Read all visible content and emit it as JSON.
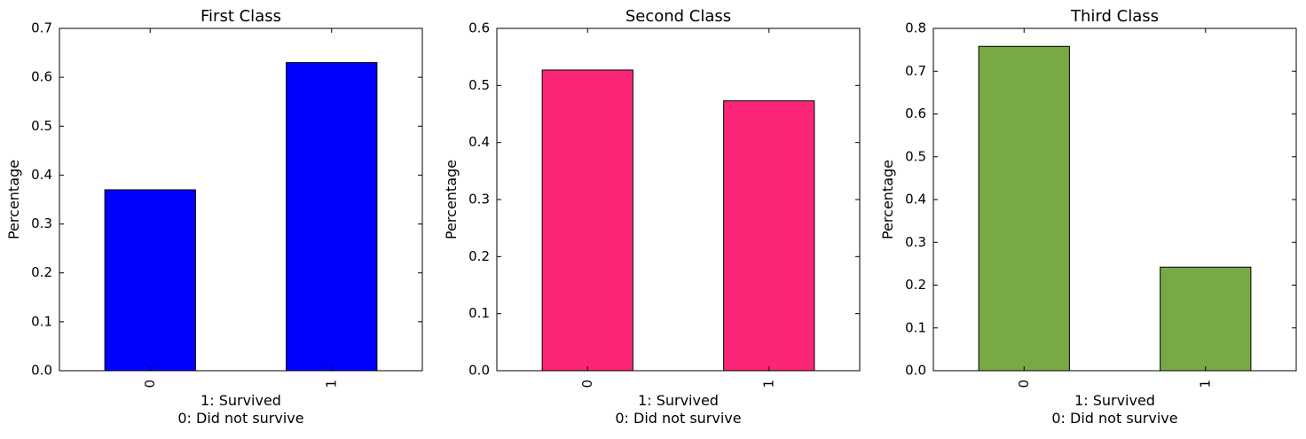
{
  "chart_data": [
    {
      "type": "bar",
      "title": "First Class",
      "xlabel_lines": [
        "1: Survived",
        "0: Did not survive"
      ],
      "ylabel": "Percentage",
      "categories": [
        "0",
        "1"
      ],
      "values": [
        0.37,
        0.63
      ],
      "ylim": [
        0,
        0.7
      ],
      "yticks": [
        "0.0",
        "0.1",
        "0.2",
        "0.3",
        "0.4",
        "0.5",
        "0.6",
        "0.7"
      ],
      "color": "#0000ff",
      "grid": false
    },
    {
      "type": "bar",
      "title": "Second Class",
      "xlabel_lines": [
        "1: Survived",
        "0: Did not survive"
      ],
      "ylabel": "Percentage",
      "categories": [
        "0",
        "1"
      ],
      "values": [
        0.527,
        0.473
      ],
      "ylim": [
        0,
        0.6
      ],
      "yticks": [
        "0.0",
        "0.1",
        "0.2",
        "0.3",
        "0.4",
        "0.5",
        "0.6"
      ],
      "color": "#fb2577",
      "grid": false
    },
    {
      "type": "bar",
      "title": "Third Class",
      "xlabel_lines": [
        "1: Survived",
        "0: Did not survive"
      ],
      "ylabel": "Percentage",
      "categories": [
        "0",
        "1"
      ],
      "values": [
        0.758,
        0.242
      ],
      "ylim": [
        0,
        0.8
      ],
      "yticks": [
        "0.0",
        "0.1",
        "0.2",
        "0.3",
        "0.4",
        "0.5",
        "0.6",
        "0.7",
        "0.8"
      ],
      "color": "#77aa44",
      "grid": false
    }
  ]
}
